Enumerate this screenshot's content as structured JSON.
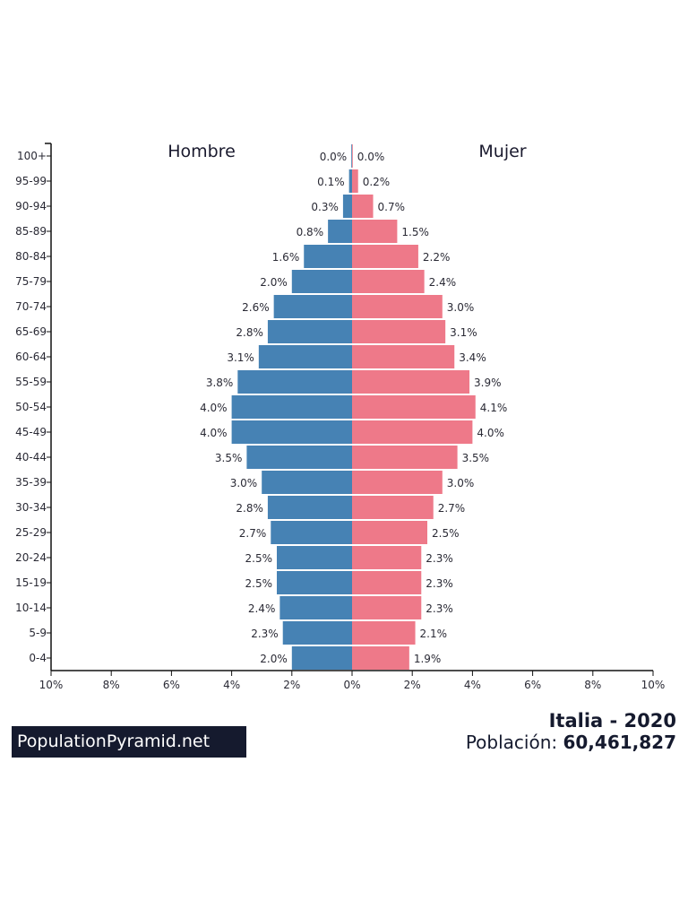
{
  "chart_data": {
    "type": "bar",
    "subtype": "population-pyramid",
    "categories": [
      "100+",
      "95-99",
      "90-94",
      "85-89",
      "80-84",
      "75-79",
      "70-74",
      "65-69",
      "60-64",
      "55-59",
      "50-54",
      "45-49",
      "40-44",
      "35-39",
      "30-34",
      "25-29",
      "20-24",
      "15-19",
      "10-14",
      "5-9",
      "0-4"
    ],
    "series": [
      {
        "name": "Hombre",
        "color": "#4682b4",
        "values": [
          0.0,
          0.1,
          0.3,
          0.8,
          1.6,
          2.0,
          2.6,
          2.8,
          3.1,
          3.8,
          4.0,
          4.0,
          3.5,
          3.0,
          2.8,
          2.7,
          2.5,
          2.5,
          2.4,
          2.3,
          2.0
        ]
      },
      {
        "name": "Mujer",
        "color": "#ee7989",
        "values": [
          0.0,
          0.2,
          0.7,
          1.5,
          2.2,
          2.4,
          3.0,
          3.1,
          3.4,
          3.9,
          4.1,
          4.0,
          3.5,
          3.0,
          2.7,
          2.5,
          2.3,
          2.3,
          2.3,
          2.1,
          1.9
        ]
      }
    ],
    "xlim": [
      -10,
      10
    ],
    "xticks": [
      "10%",
      "8%",
      "6%",
      "4%",
      "2%",
      "0%",
      "2%",
      "4%",
      "6%",
      "8%",
      "10%"
    ],
    "title": "Italia - 2020",
    "population_label": "Población:",
    "population_value": "60,461,827"
  },
  "brand": "PopulationPyramid.net"
}
